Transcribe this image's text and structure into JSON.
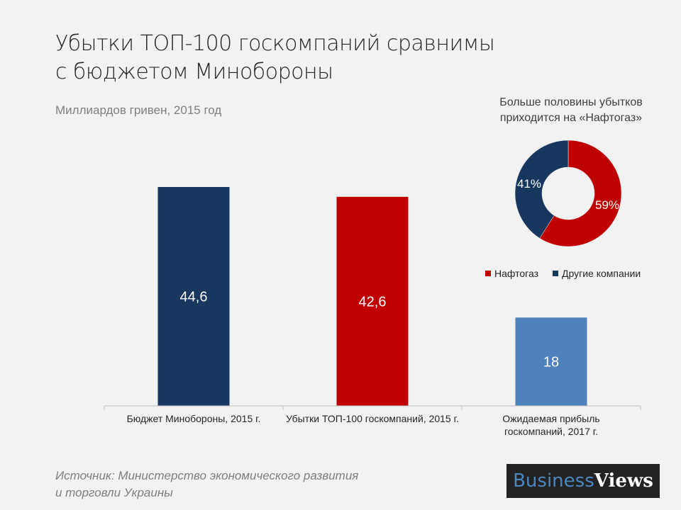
{
  "title_line1": "Убытки ТОП-100 госкомпаний сравнимы",
  "title_line2": "с бюджетом Минобороны",
  "subtitle": "Миллиардов гривен, 2015 год",
  "source_line1": "Источник: Министерство экономического развития",
  "source_line2": "и торговли Украины",
  "logo": {
    "part1": "Business",
    "part2": "Views"
  },
  "chart_data": [
    {
      "type": "bar",
      "categories": [
        "Бюджет Минобороны, 2015 г.",
        "Убытки ТОП-100 госкомпаний, 2015 г.",
        "Ожидаемая прибыль госкомпаний, 2017 г."
      ],
      "values": [
        44.6,
        42.6,
        18
      ],
      "labels": [
        "44,6",
        "42,6",
        "18"
      ],
      "colors": [
        "#17375e",
        "#c00000",
        "#4f81bd"
      ],
      "ylim": [
        0,
        44.6
      ]
    },
    {
      "type": "pie",
      "title_line1": "Больше половины убытков",
      "title_line2": "приходится на «Нафтогаз»",
      "slices": [
        {
          "name": "Нафтогаз",
          "value": 59,
          "label": "59%",
          "color": "#c00000"
        },
        {
          "name": "Другие компании",
          "value": 41,
          "label": "41%",
          "color": "#17375e"
        }
      ]
    }
  ]
}
